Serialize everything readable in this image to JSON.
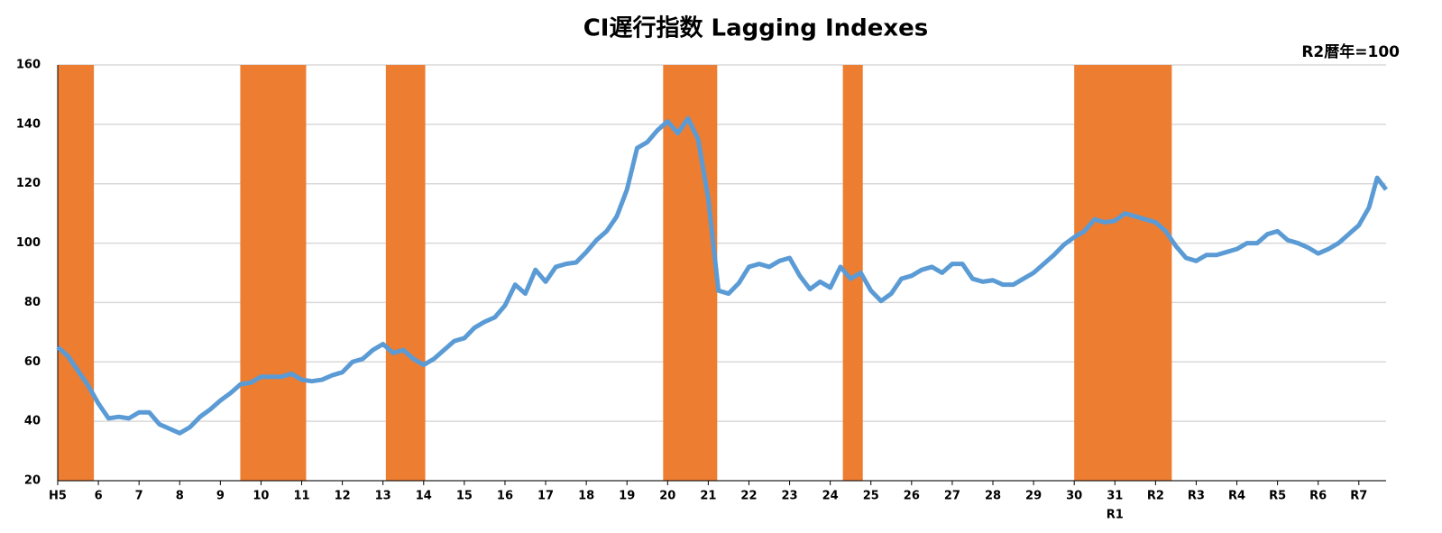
{
  "chart_data": {
    "type": "line",
    "title": "CI遅行指数 Lagging Indexes",
    "unit_note": "R2暦年=100",
    "x": [
      1993.0,
      1993.25,
      1993.5,
      1993.75,
      1994.0,
      1994.25,
      1994.5,
      1994.75,
      1995.0,
      1995.25,
      1995.5,
      1995.75,
      1996.0,
      1996.25,
      1996.5,
      1996.75,
      1997.0,
      1997.25,
      1997.5,
      1997.75,
      1998.0,
      1998.25,
      1998.5,
      1998.75,
      1999.0,
      1999.25,
      1999.5,
      1999.75,
      2000.0,
      2000.25,
      2000.5,
      2000.75,
      2001.0,
      2001.25,
      2001.5,
      2001.75,
      2002.0,
      2002.25,
      2002.5,
      2002.75,
      2003.0,
      2003.25,
      2003.5,
      2003.75,
      2004.0,
      2004.25,
      2004.5,
      2004.75,
      2005.0,
      2005.25,
      2005.5,
      2005.75,
      2006.0,
      2006.25,
      2006.5,
      2006.75,
      2007.0,
      2007.25,
      2007.5,
      2007.75,
      2008.0,
      2008.25,
      2008.5,
      2008.75,
      2009.0,
      2009.25,
      2009.5,
      2009.75,
      2010.0,
      2010.25,
      2010.5,
      2010.75,
      2011.0,
      2011.25,
      2011.5,
      2011.75,
      2012.0,
      2012.25,
      2012.5,
      2012.75,
      2013.0,
      2013.25,
      2013.5,
      2013.75,
      2014.0,
      2014.25,
      2014.5,
      2014.75,
      2015.0,
      2015.25,
      2015.5,
      2015.75,
      2016.0,
      2016.25,
      2016.5,
      2016.75,
      2017.0,
      2017.25,
      2017.5,
      2017.75,
      2018.0,
      2018.25,
      2018.5,
      2018.75,
      2019.0,
      2019.25,
      2019.5,
      2019.75,
      2020.0,
      2020.25,
      2020.5,
      2020.75,
      2021.0,
      2021.25,
      2021.5,
      2021.75,
      2022.0,
      2022.25,
      2022.5,
      2022.75,
      2023.0,
      2023.25,
      2023.5,
      2023.75,
      2024.0,
      2024.25,
      2024.5,
      2024.75,
      2025.0,
      2025.25,
      2025.45,
      2025.67
    ],
    "series": [
      {
        "name": "CI遅行指数",
        "color": "#5b9bd5",
        "values": [
          65,
          62,
          57,
          52,
          46,
          41,
          41.5,
          41,
          43,
          43,
          39,
          37.5,
          36,
          38,
          41.5,
          44,
          47,
          49.5,
          52.5,
          53,
          55,
          55,
          55,
          56,
          54,
          53.5,
          54,
          55.5,
          56.5,
          60,
          61,
          64,
          66,
          63,
          64,
          61,
          59,
          61,
          64,
          67,
          68,
          71.5,
          73.5,
          75,
          79,
          86,
          83,
          91,
          87,
          92,
          93,
          93.5,
          97,
          101,
          104,
          109,
          118,
          132,
          134,
          138,
          141,
          137,
          142,
          135,
          115,
          84,
          83,
          86.5,
          92,
          93,
          92,
          94,
          95,
          89,
          84.5,
          87,
          85,
          92,
          88,
          90,
          84,
          80.5,
          83,
          88,
          89,
          91,
          92,
          90,
          93,
          93,
          88,
          87,
          87.5,
          86,
          86,
          88,
          90,
          93,
          96,
          99.5,
          102,
          104,
          108,
          107,
          107.5,
          110,
          109,
          108,
          107,
          104,
          99,
          95,
          94,
          96,
          96,
          97,
          98,
          100,
          100,
          103,
          104,
          101,
          100,
          98.5,
          96.5,
          98,
          100,
          103,
          106,
          112,
          122,
          118
        ]
      }
    ],
    "shading": [
      [
        1993.0,
        1993.89
      ],
      [
        1997.49,
        1999.11
      ],
      [
        2001.07,
        2002.04
      ],
      [
        2007.89,
        2009.22
      ],
      [
        2012.31,
        2012.8
      ],
      [
        2018.0,
        2020.4
      ]
    ],
    "shading_color": "#ed7d31",
    "xlim": [
      1993.0,
      2025.67
    ],
    "xticks": [
      {
        "value": 1993,
        "label": "H5"
      },
      {
        "value": 1994,
        "label": "6"
      },
      {
        "value": 1995,
        "label": "7"
      },
      {
        "value": 1996,
        "label": "8"
      },
      {
        "value": 1997,
        "label": "9"
      },
      {
        "value": 1998,
        "label": "10"
      },
      {
        "value": 1999,
        "label": "11"
      },
      {
        "value": 2000,
        "label": "12"
      },
      {
        "value": 2001,
        "label": "13"
      },
      {
        "value": 2002,
        "label": "14"
      },
      {
        "value": 2003,
        "label": "15"
      },
      {
        "value": 2004,
        "label": "16"
      },
      {
        "value": 2005,
        "label": "17"
      },
      {
        "value": 2006,
        "label": "18"
      },
      {
        "value": 2007,
        "label": "19"
      },
      {
        "value": 2008,
        "label": "20"
      },
      {
        "value": 2009,
        "label": "21"
      },
      {
        "value": 2010,
        "label": "22"
      },
      {
        "value": 2011,
        "label": "23"
      },
      {
        "value": 2012,
        "label": "24"
      },
      {
        "value": 2013,
        "label": "25"
      },
      {
        "value": 2014,
        "label": "26"
      },
      {
        "value": 2015,
        "label": "27"
      },
      {
        "value": 2016,
        "label": "28"
      },
      {
        "value": 2017,
        "label": "29"
      },
      {
        "value": 2018,
        "label": "30"
      },
      {
        "value": 2019,
        "label": "31"
      },
      {
        "value": 2020,
        "label": "R2"
      },
      {
        "value": 2021,
        "label": "R3"
      },
      {
        "value": 2022,
        "label": "R4"
      },
      {
        "value": 2023,
        "label": "R5"
      },
      {
        "value": 2024,
        "label": "R6"
      },
      {
        "value": 2025,
        "label": "R7"
      }
    ],
    "annotations": [
      {
        "text": "R1",
        "x": 2019
      }
    ],
    "ylim": [
      20,
      160
    ],
    "yticks": [
      20,
      40,
      60,
      80,
      100,
      120,
      140,
      160
    ],
    "grid": true
  }
}
